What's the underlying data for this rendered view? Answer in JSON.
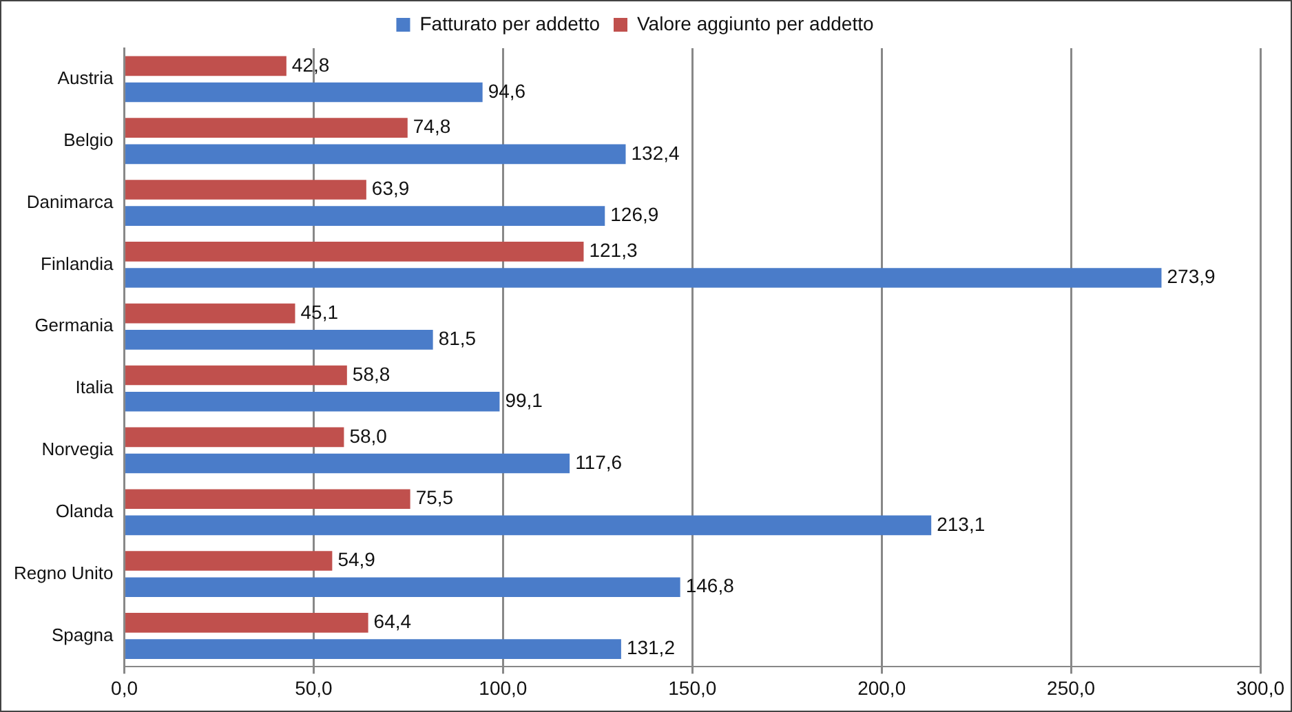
{
  "chart_data": {
    "type": "bar",
    "orientation": "horizontal",
    "categories": [
      "Austria",
      "Belgio",
      "Danimarca",
      "Finlandia",
      "Germania",
      "Italia",
      "Norvegia",
      "Olanda",
      "Regno Unito",
      "Spagna"
    ],
    "series": [
      {
        "name": "Fatturato per addetto",
        "color": "#4a7cc9",
        "values": [
          94.6,
          132.4,
          126.9,
          273.9,
          81.5,
          99.1,
          117.6,
          213.1,
          146.8,
          131.2
        ],
        "value_labels": [
          "94,6",
          "132,4",
          "126,9",
          "273,9",
          "81,5",
          "99,1",
          "117,6",
          "213,1",
          "146,8",
          "131,2"
        ]
      },
      {
        "name": "Valore aggiunto per addetto",
        "color": "#c0504d",
        "values": [
          42.8,
          74.8,
          63.9,
          121.3,
          45.1,
          58.8,
          58.0,
          75.5,
          54.9,
          64.4
        ],
        "value_labels": [
          "42,8",
          "74,8",
          "63,9",
          "121,3",
          "45,1",
          "58,8",
          "58,0",
          "75,5",
          "54,9",
          "64,4"
        ]
      }
    ],
    "xlim": [
      0,
      300
    ],
    "xticks": [
      {
        "value": 0,
        "label": "0,0"
      },
      {
        "value": 50,
        "label": "50,0"
      },
      {
        "value": 100,
        "label": "100,0"
      },
      {
        "value": 150,
        "label": "150,0"
      },
      {
        "value": 200,
        "label": "200,0"
      },
      {
        "value": 250,
        "label": "250,0"
      },
      {
        "value": 300,
        "label": "300,0"
      }
    ],
    "grid": "x",
    "legend": "top"
  }
}
